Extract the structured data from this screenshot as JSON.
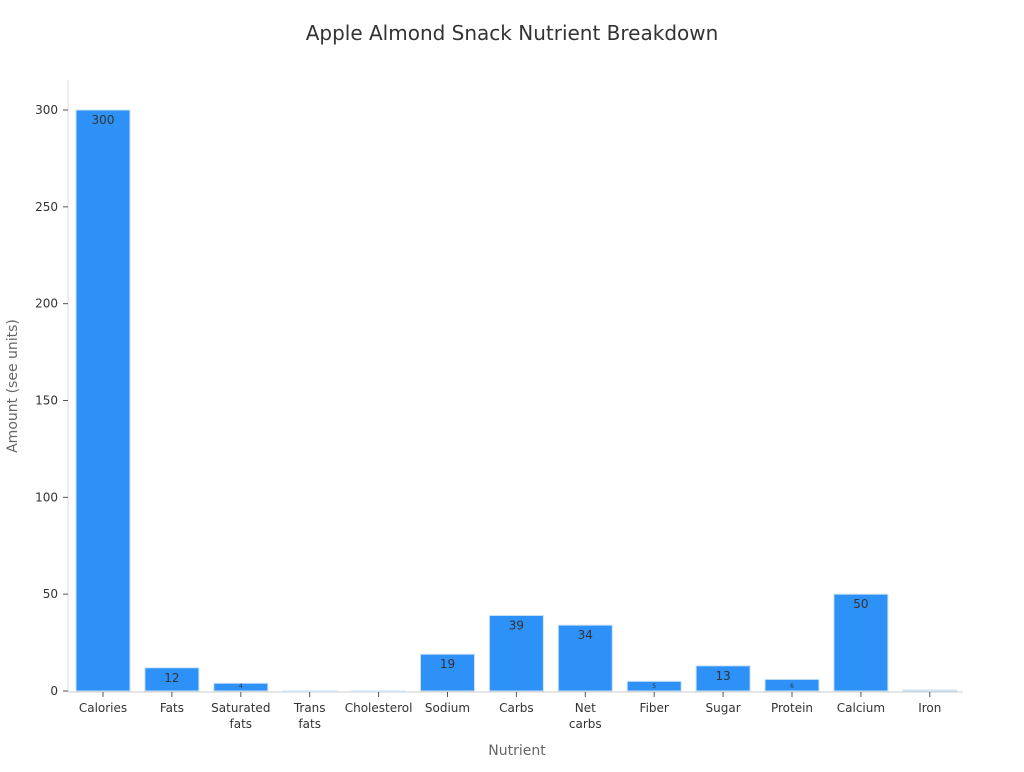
{
  "chart_data": {
    "type": "bar",
    "title": "Apple Almond Snack Nutrient Breakdown",
    "xlabel": "Nutrient",
    "ylabel": "Amount (see units)",
    "categories": [
      "Calories",
      "Fats",
      "Saturated fats",
      "Trans fats",
      "Cholesterol",
      "Sodium",
      "Carbs",
      "Net carbs",
      "Fiber",
      "Sugar",
      "Protein",
      "Calcium",
      "Iron"
    ],
    "values": [
      300,
      12,
      4,
      0,
      0,
      19,
      39,
      34,
      5,
      13,
      6,
      50,
      0.5
    ],
    "data_labels": [
      "300",
      "12",
      "4",
      "",
      "",
      "19",
      "39",
      "34",
      "5",
      "13",
      "6",
      "50",
      ""
    ],
    "ylim": [
      0,
      315
    ],
    "yticks": [
      0,
      50,
      100,
      150,
      200,
      250,
      300
    ],
    "grid": false,
    "bar_color": "#2d91f8",
    "bar_edge_color": "#cde3f5"
  }
}
